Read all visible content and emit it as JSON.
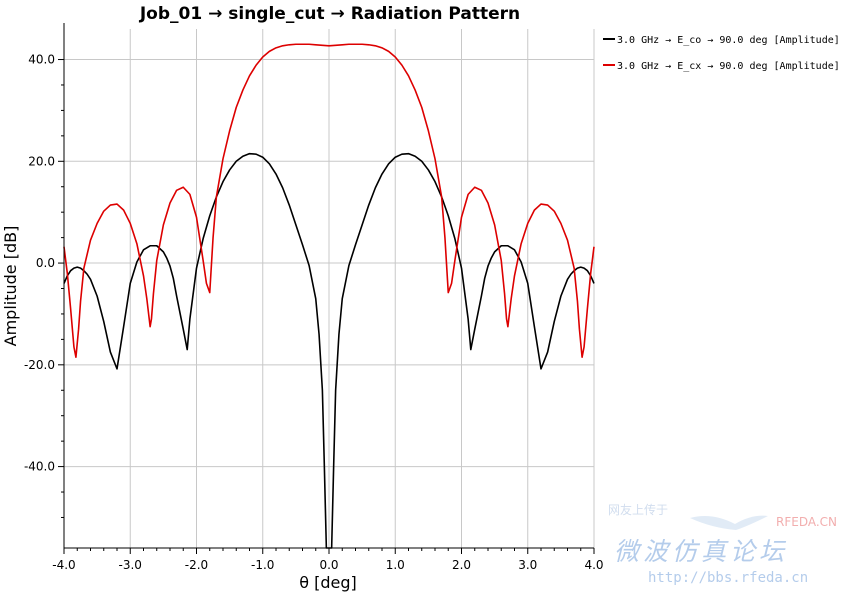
{
  "chart_data": {
    "type": "line",
    "title": "Job_01 → single_cut → Radiation Pattern",
    "xlabel": "θ [deg]",
    "ylabel": "Amplitude [dB]",
    "xlim": [
      -4.0,
      4.0
    ],
    "ylim": [
      -56,
      46
    ],
    "x_ticks": [
      -4.0,
      -3.0,
      -2.0,
      -1.0,
      0.0,
      1.0,
      2.0,
      3.0,
      4.0
    ],
    "x_tick_labels": [
      "-4.0",
      "-3.0",
      "-2.0",
      "-1.0",
      "0.0",
      "1.0",
      "2.0",
      "3.0",
      "4.0"
    ],
    "y_ticks": [
      40,
      20,
      0,
      -20,
      -40
    ],
    "y_tick_labels": [
      "40.0",
      "20.0",
      "0.0",
      "-20.0",
      "-40.0"
    ],
    "grid": true,
    "legend_position": "top-right outside",
    "series": [
      {
        "name": "3.0 GHz → E_co → 90.0 deg [Amplitude]",
        "color": "#000000",
        "x": [
          -4.0,
          -3.95,
          -3.9,
          -3.85,
          -3.8,
          -3.75,
          -3.7,
          -3.65,
          -3.6,
          -3.5,
          -3.4,
          -3.3,
          -3.2,
          -3.1,
          -3.0,
          -2.9,
          -2.8,
          -2.7,
          -2.6,
          -2.5,
          -2.45,
          -2.4,
          -2.35,
          -2.3,
          -2.2,
          -2.14,
          -2.1,
          -2.0,
          -1.9,
          -1.8,
          -1.7,
          -1.6,
          -1.5,
          -1.4,
          -1.3,
          -1.2,
          -1.1,
          -1.0,
          -0.9,
          -0.8,
          -0.7,
          -0.6,
          -0.5,
          -0.4,
          -0.3,
          -0.2,
          -0.15,
          -0.1,
          -0.07,
          -0.04,
          -0.02,
          0.0,
          0.02,
          0.04,
          0.07,
          0.1,
          0.15,
          0.2,
          0.3,
          0.4,
          0.5,
          0.6,
          0.7,
          0.8,
          0.9,
          1.0,
          1.1,
          1.2,
          1.3,
          1.4,
          1.5,
          1.6,
          1.7,
          1.8,
          1.9,
          2.0,
          2.1,
          2.14,
          2.2,
          2.3,
          2.35,
          2.4,
          2.45,
          2.5,
          2.6,
          2.7,
          2.8,
          2.9,
          3.0,
          3.1,
          3.2,
          3.3,
          3.4,
          3.5,
          3.6,
          3.65,
          3.7,
          3.75,
          3.8,
          3.85,
          3.9,
          3.95,
          4.0
        ],
        "values": [
          -4,
          -2.5,
          -1.5,
          -1.0,
          -0.8,
          -1.0,
          -1.5,
          -2.2,
          -3.2,
          -6.5,
          -11.5,
          -17.5,
          -20.8,
          -12.5,
          -4.0,
          0.2,
          2.6,
          3.4,
          3.4,
          2.2,
          1.0,
          -0.6,
          -3.0,
          -6.5,
          -13.0,
          -17.0,
          -11.0,
          -1.0,
          4.8,
          9.3,
          13.0,
          16.0,
          18.3,
          20.0,
          21.0,
          21.5,
          21.4,
          20.8,
          19.5,
          17.5,
          14.8,
          11.4,
          7.5,
          3.6,
          -0.5,
          -7.0,
          -14.0,
          -25.0,
          -40.0,
          -58,
          -58,
          -58,
          -58,
          -58,
          -40.0,
          -25.0,
          -14.0,
          -7.0,
          -0.5,
          3.6,
          7.5,
          11.4,
          14.8,
          17.5,
          19.5,
          20.8,
          21.4,
          21.5,
          21.0,
          20.0,
          18.3,
          16.0,
          13.0,
          9.3,
          4.8,
          -1.0,
          -11.0,
          -17.0,
          -13.0,
          -6.5,
          -3.0,
          -0.6,
          1.0,
          2.2,
          3.4,
          3.4,
          2.6,
          0.2,
          -4.0,
          -12.5,
          -20.8,
          -17.5,
          -11.5,
          -6.5,
          -3.2,
          -2.2,
          -1.5,
          -1.0,
          -0.8,
          -1.0,
          -1.5,
          -2.5,
          -4
        ]
      },
      {
        "name": "3.0 GHz → E_cx → 90.0 deg [Amplitude]",
        "color": "#dd0000",
        "x": [
          -4.0,
          -3.95,
          -3.9,
          -3.85,
          -3.82,
          -3.78,
          -3.75,
          -3.7,
          -3.6,
          -3.5,
          -3.4,
          -3.3,
          -3.2,
          -3.1,
          -3.0,
          -2.9,
          -2.8,
          -2.75,
          -2.7,
          -2.68,
          -2.65,
          -2.6,
          -2.5,
          -2.4,
          -2.3,
          -2.2,
          -2.1,
          -2.0,
          -1.9,
          -1.85,
          -1.8,
          -1.75,
          -1.7,
          -1.6,
          -1.5,
          -1.4,
          -1.3,
          -1.2,
          -1.1,
          -1.0,
          -0.9,
          -0.8,
          -0.7,
          -0.6,
          -0.5,
          -0.4,
          -0.3,
          -0.2,
          -0.1,
          0.0,
          0.1,
          0.2,
          0.3,
          0.4,
          0.5,
          0.6,
          0.7,
          0.8,
          0.9,
          1.0,
          1.1,
          1.2,
          1.3,
          1.4,
          1.5,
          1.6,
          1.7,
          1.75,
          1.8,
          1.85,
          1.9,
          2.0,
          2.1,
          2.2,
          2.3,
          2.4,
          2.5,
          2.6,
          2.65,
          2.68,
          2.7,
          2.75,
          2.8,
          2.9,
          3.0,
          3.1,
          3.2,
          3.3,
          3.4,
          3.5,
          3.6,
          3.7,
          3.75,
          3.78,
          3.82,
          3.85,
          3.9,
          3.95,
          4.0
        ],
        "values": [
          3.2,
          -2.0,
          -9.0,
          -16.5,
          -18.5,
          -13.0,
          -7.5,
          -1.0,
          4.5,
          7.8,
          10.2,
          11.4,
          11.6,
          10.4,
          7.8,
          3.8,
          -2.5,
          -7.0,
          -12.5,
          -11.0,
          -6.0,
          0.5,
          7.5,
          11.8,
          14.3,
          14.9,
          13.5,
          9.0,
          0.5,
          -4.0,
          -5.8,
          5.0,
          13.0,
          20.5,
          26.0,
          30.6,
          34.0,
          36.8,
          38.9,
          40.5,
          41.6,
          42.3,
          42.7,
          42.9,
          43.0,
          43.0,
          43.0,
          42.9,
          42.8,
          42.7,
          42.8,
          42.9,
          43.0,
          43.0,
          43.0,
          42.9,
          42.7,
          42.3,
          41.6,
          40.5,
          38.9,
          36.8,
          34.0,
          30.6,
          26.0,
          20.5,
          13.0,
          5.0,
          -5.8,
          -4.0,
          0.5,
          9.0,
          13.5,
          14.9,
          14.3,
          11.8,
          7.5,
          0.5,
          -6.0,
          -11.0,
          -12.5,
          -7.0,
          -2.5,
          3.8,
          7.8,
          10.4,
          11.6,
          11.4,
          10.2,
          7.8,
          4.5,
          -1.0,
          -7.5,
          -13.0,
          -18.5,
          -16.5,
          -9.0,
          -2.0,
          3.2
        ]
      }
    ]
  },
  "watermark": {
    "line1": "网友上传于",
    "brand": "RFEDA.CN",
    "chinese": "微波仿真论坛",
    "url": "http://bbs.rfeda.cn"
  }
}
